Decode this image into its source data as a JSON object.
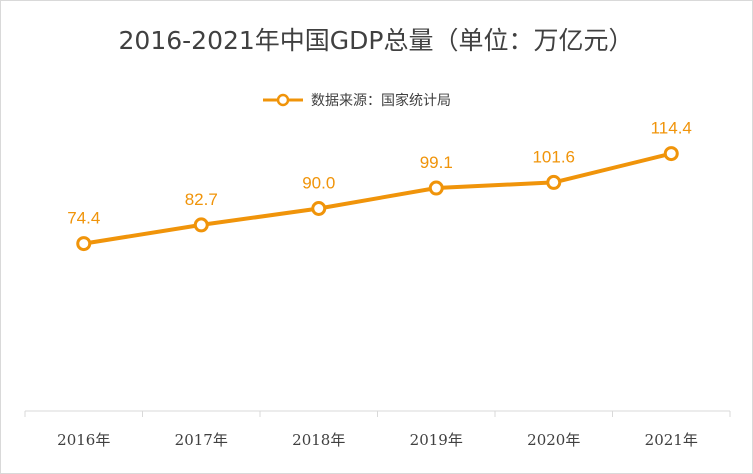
{
  "chart_data": {
    "type": "line",
    "title": "2016-2021年中国GDP总量（单位：万亿元）",
    "xlabel": "",
    "ylabel": "",
    "categories": [
      "2016年",
      "2017年",
      "2018年",
      "2019年",
      "2020年",
      "2021年"
    ],
    "series": [
      {
        "name": "数据来源：国家统计局",
        "values": [
          74.4,
          82.7,
          90.0,
          99.1,
          101.6,
          114.4
        ],
        "value_labels": [
          "74.4",
          "82.7",
          "90.0",
          "99.1",
          "101.6",
          "114.4"
        ],
        "color": "#f0940a"
      }
    ],
    "ylim": [
      0,
      160
    ],
    "grid": false,
    "legend_position": "top-center"
  },
  "colors": {
    "series": "#f0940a",
    "text": "#404040",
    "axis": "#d9d9d9",
    "marker_fill": "#ffffff"
  }
}
